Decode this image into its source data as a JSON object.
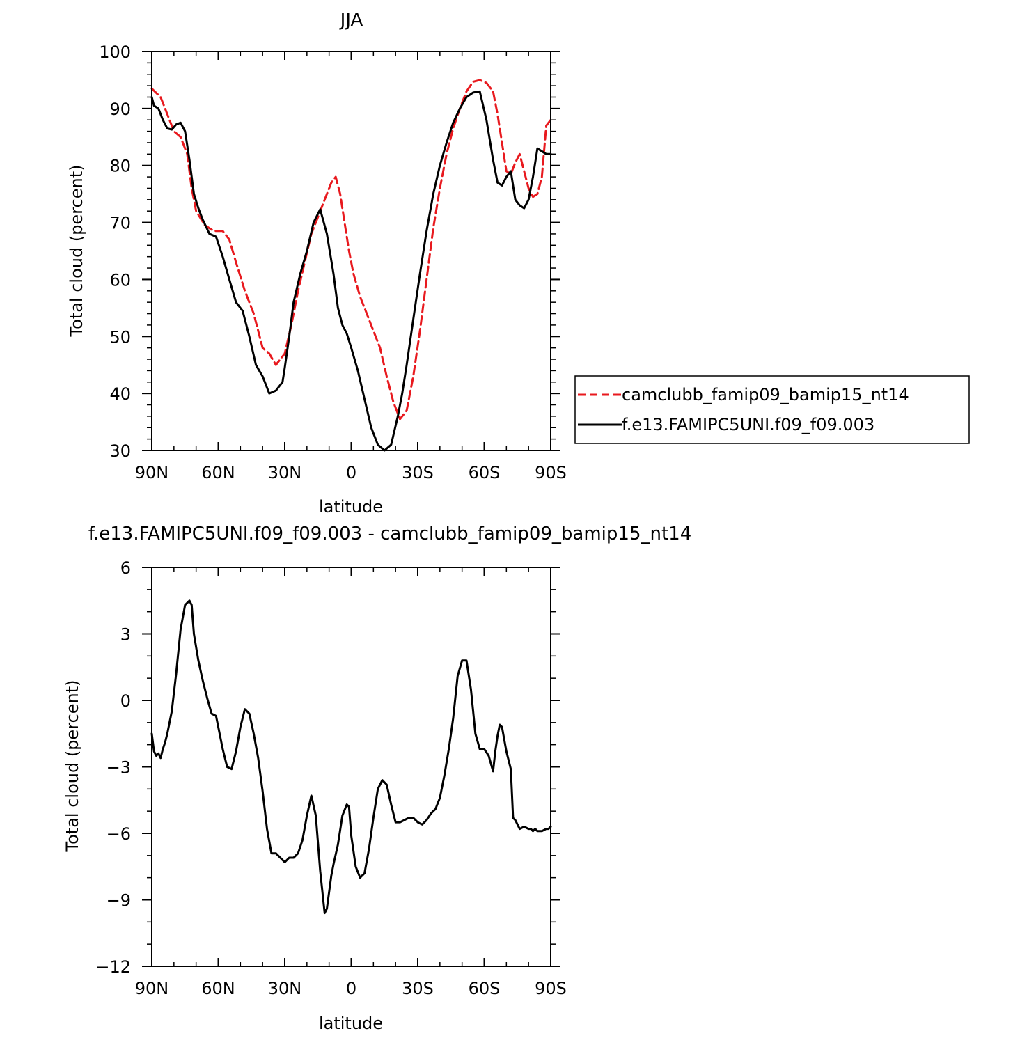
{
  "colors": {
    "series_1": "#e8191e",
    "series_2": "#000000"
  },
  "chart_data": [
    {
      "type": "line",
      "title": "JJA",
      "xlabel": "latitude",
      "ylabel": "Total cloud (percent)",
      "x_reversed": true,
      "xlim": [
        90,
        -90
      ],
      "ylim": [
        30,
        100
      ],
      "xticks": [
        90,
        60,
        30,
        0,
        -30,
        -60,
        -90
      ],
      "xtick_labels": [
        "90N",
        "60N",
        "30N",
        "0",
        "30S",
        "60S",
        "90S"
      ],
      "yticks": [
        30,
        40,
        50,
        60,
        70,
        80,
        90,
        100
      ],
      "ytick_labels": [
        "30",
        "40",
        "50",
        "60",
        "70",
        "80",
        "90",
        "100"
      ],
      "legend_position": "right",
      "series": [
        {
          "name": "camclubb_famip09_bamip15_nt14",
          "style": "dashed",
          "color": "#e8191e",
          "x": [
            90,
            86,
            83,
            80,
            77,
            74,
            72,
            70,
            66,
            62,
            58,
            55,
            52,
            48,
            44,
            40,
            37,
            34,
            30,
            27,
            24,
            21,
            18,
            15,
            12,
            9,
            7,
            5,
            3,
            1,
            -1,
            -4,
            -7,
            -10,
            -13,
            -16,
            -19,
            -22,
            -25,
            -28,
            -31,
            -34,
            -37,
            -40,
            -43,
            -46,
            -49,
            -52,
            -55,
            -58,
            -61,
            -64,
            -66,
            -68,
            -70,
            -72,
            -74,
            -76,
            -78,
            -80,
            -82,
            -84,
            -86,
            -88,
            -90
          ],
          "y": [
            93.5,
            92,
            89,
            86,
            85,
            82,
            76,
            72,
            69.5,
            68.5,
            68.5,
            67,
            63,
            58,
            54,
            48,
            47,
            45,
            47,
            52,
            58,
            63,
            68,
            71,
            74,
            77,
            78,
            75,
            70,
            65,
            61,
            57,
            54,
            51,
            48,
            43,
            38.5,
            35.5,
            37,
            43,
            51,
            60,
            69,
            76,
            82,
            86.5,
            90,
            93,
            94.7,
            95,
            94.5,
            93,
            89,
            84,
            79,
            78.5,
            80.5,
            82,
            79,
            76,
            74.5,
            75,
            78,
            87,
            88
          ]
        },
        {
          "name": "f.e13.FAMIPC5UNI.f09_f09.003",
          "style": "solid",
          "color": "#000000",
          "x": [
            90,
            89,
            87,
            85,
            83,
            81,
            79,
            77,
            75,
            73,
            71,
            69,
            67,
            64,
            61,
            58,
            55,
            52,
            49,
            46,
            43,
            40,
            37,
            34,
            31,
            30,
            28,
            26,
            23,
            20,
            17,
            14,
            11,
            8,
            6,
            4,
            2,
            0,
            -3,
            -6,
            -9,
            -12,
            -15,
            -18,
            -21,
            -23,
            -25,
            -28,
            -31,
            -34,
            -37,
            -40,
            -43,
            -46,
            -49,
            -52,
            -55,
            -58,
            -61,
            -64,
            -66,
            -68,
            -70,
            -72,
            -74,
            -76,
            -78,
            -80,
            -82,
            -84,
            -86,
            -88,
            -90
          ],
          "y": [
            92,
            90.5,
            90,
            88,
            86.5,
            86.3,
            87.2,
            87.5,
            86,
            81,
            75,
            72.5,
            70.5,
            68,
            67.5,
            64,
            60,
            56,
            54.5,
            50,
            45,
            43,
            40,
            40.5,
            42,
            44.5,
            50,
            56,
            61,
            65,
            70,
            72.3,
            68,
            61,
            55,
            52,
            50.5,
            48,
            44,
            39,
            34,
            31,
            30,
            31,
            36,
            40,
            45,
            53,
            61,
            68.5,
            75,
            80,
            84,
            87.5,
            90,
            92,
            92.8,
            93,
            88,
            81,
            77,
            76.5,
            78,
            79,
            74,
            73,
            72.5,
            74,
            78,
            83,
            82.5,
            82,
            82
          ]
        }
      ]
    },
    {
      "type": "line",
      "title": "f.e13.FAMIPC5UNI.f09_f09.003 - camclubb_famip09_bamip15_nt14",
      "xlabel": "latitude",
      "ylabel": "Total cloud (percent)",
      "x_reversed": true,
      "xlim": [
        90,
        -90
      ],
      "ylim": [
        -12,
        6
      ],
      "xticks": [
        90,
        60,
        30,
        0,
        -30,
        -60,
        -90
      ],
      "xtick_labels": [
        "90N",
        "60N",
        "30N",
        "0",
        "30S",
        "60S",
        "90S"
      ],
      "yticks": [
        -12,
        -9,
        -6,
        -3,
        0,
        3,
        6
      ],
      "ytick_labels": [
        "−12",
        "−9",
        "−6",
        "−3",
        "0",
        "3",
        "6"
      ],
      "series": [
        {
          "style": "solid",
          "color": "#000000",
          "x": [
            90,
            89,
            88,
            87,
            86,
            85,
            84,
            83,
            81,
            79,
            77,
            75,
            73,
            72,
            71,
            69,
            67,
            65,
            63,
            61,
            60,
            58,
            56,
            54,
            52,
            50,
            48,
            46,
            44,
            42,
            40,
            38,
            36,
            34,
            32,
            30,
            28,
            26,
            24,
            22,
            20,
            18,
            16,
            14,
            12,
            11,
            9,
            8,
            6,
            4,
            2,
            1,
            0,
            -2,
            -4,
            -6,
            -8,
            -10,
            -12,
            -14,
            -16,
            -18,
            -20,
            -22,
            -24,
            -26,
            -28,
            -30,
            -32,
            -34,
            -36,
            -38,
            -40,
            -42,
            -44,
            -46,
            -48,
            -50,
            -52,
            -54,
            -56,
            -58,
            -60,
            -62,
            -64,
            -65,
            -66,
            -67,
            -68,
            -70,
            -72,
            -73,
            -74,
            -76,
            -78,
            -80,
            -81,
            -82,
            -83,
            -84,
            -86,
            -88,
            -89,
            -90
          ],
          "y": [
            -1.5,
            -2.3,
            -2.5,
            -2.4,
            -2.6,
            -2.2,
            -1.9,
            -1.5,
            -0.5,
            1.2,
            3.2,
            4.3,
            4.5,
            4.3,
            3,
            1.8,
            0.9,
            0.1,
            -0.6,
            -0.7,
            -1.2,
            -2.2,
            -3,
            -3.1,
            -2.3,
            -1.2,
            -0.4,
            -0.6,
            -1.5,
            -2.6,
            -4.1,
            -5.8,
            -6.9,
            -6.9,
            -7.1,
            -7.3,
            -7.1,
            -7.1,
            -6.9,
            -6.3,
            -5.2,
            -4.3,
            -5.2,
            -7.7,
            -9.6,
            -9.4,
            -7.9,
            -7.4,
            -6.5,
            -5.2,
            -4.7,
            -4.8,
            -6.1,
            -7.5,
            -8,
            -7.8,
            -6.7,
            -5.3,
            -4,
            -3.6,
            -3.8,
            -4.7,
            -5.5,
            -5.5,
            -5.4,
            -5.3,
            -5.3,
            -5.5,
            -5.6,
            -5.4,
            -5.1,
            -4.9,
            -4.4,
            -3.4,
            -2.2,
            -0.8,
            1.1,
            1.8,
            1.8,
            0.5,
            -1.5,
            -2.2,
            -2.2,
            -2.5,
            -3.2,
            -2.3,
            -1.6,
            -1.1,
            -1.2,
            -2.3,
            -3.1,
            -5.3,
            -5.4,
            -5.8,
            -5.7,
            -5.8,
            -5.8,
            -5.9,
            -5.8,
            -5.9,
            -5.9,
            -5.8,
            -5.8,
            -5.7
          ]
        }
      ]
    }
  ]
}
